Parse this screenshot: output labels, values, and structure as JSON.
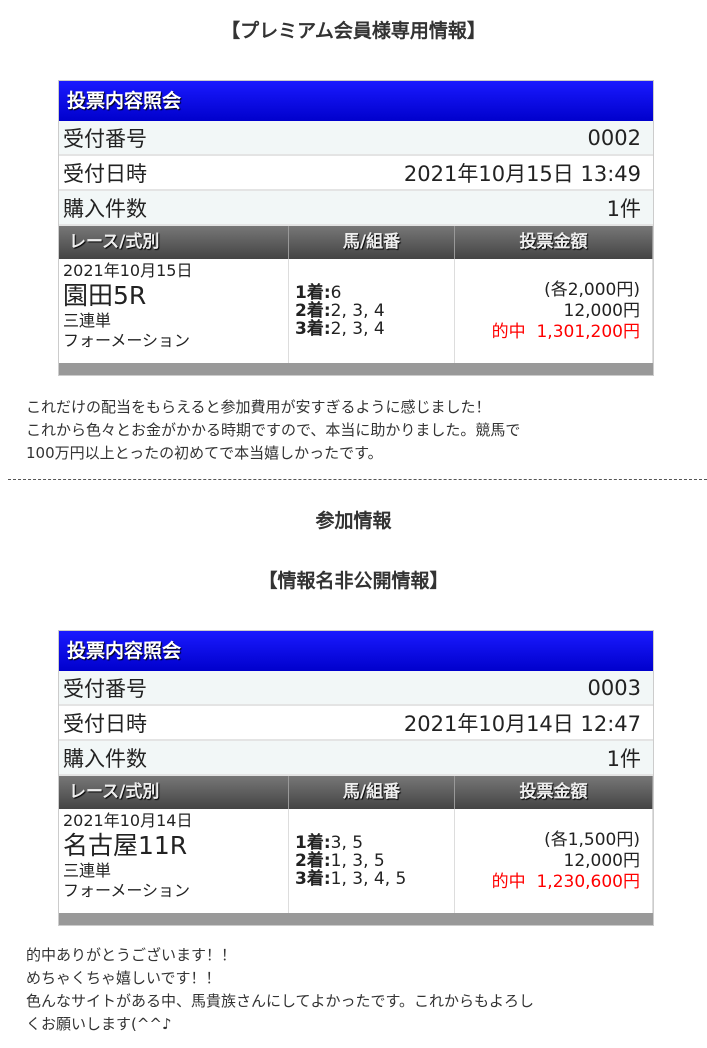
{
  "sections": [
    {
      "title": "【プレミアム会員様専用情報】",
      "card": {
        "header": "投票内容照会",
        "rows": [
          {
            "label": "受付番号",
            "value": "0002"
          },
          {
            "label": "受付日時",
            "value": "2021年10月15日 13:49"
          },
          {
            "label": "購入件数",
            "value": "1件"
          }
        ],
        "columns": [
          "レース/式別",
          "馬/組番",
          "投票金額"
        ],
        "race_date": "2021年10月15日",
        "race_name": "園田5R",
        "bet_type": "三連単",
        "bet_method": "フォーメーション",
        "combos": [
          {
            "place": "1着:",
            "horses": "6"
          },
          {
            "place": "2着:",
            "horses": "2, 3, 4"
          },
          {
            "place": "3着:",
            "horses": "2, 3, 4"
          }
        ],
        "unit_amount": "(各2,000円)",
        "total_amount": "12,000円",
        "hit_label": "的中",
        "payout": "1,301,200円"
      },
      "comment": [
        "これだけの配当をもらえると参加費用が安すぎるように感じました！",
        "これから色々とお金がかかる時期ですので、本当に助かりました。競馬で",
        "100万円以上とったの初めてで本当嬉しかったです。"
      ]
    },
    {
      "title": "【情報名非公開情報】",
      "card": {
        "header": "投票内容照会",
        "rows": [
          {
            "label": "受付番号",
            "value": "0003"
          },
          {
            "label": "受付日時",
            "value": "2021年10月14日 12:47"
          },
          {
            "label": "購入件数",
            "value": "1件"
          }
        ],
        "columns": [
          "レース/式別",
          "馬/組番",
          "投票金額"
        ],
        "race_date": "2021年10月14日",
        "race_name": "名古屋11R",
        "bet_type": "三連単",
        "bet_method": "フォーメーション",
        "combos": [
          {
            "place": "1着:",
            "horses": "3, 5"
          },
          {
            "place": "2着:",
            "horses": "1, 3, 5"
          },
          {
            "place": "3着:",
            "horses": "1, 3, 4, 5"
          }
        ],
        "unit_amount": "(各1,500円)",
        "total_amount": "12,000円",
        "hit_label": "的中",
        "payout": "1,230,600円"
      },
      "comment": [
        "的中ありがとうございます！！",
        "めちゃくちゃ嬉しいです！！",
        "色んなサイトがある中、馬貴族さんにしてよかったです。これからもよろし",
        "くお願いします(^^♪"
      ]
    }
  ],
  "participation_heading": "参加情報",
  "colors": {
    "header_blue": "#0000cc",
    "hit_red": "#ff0000"
  }
}
